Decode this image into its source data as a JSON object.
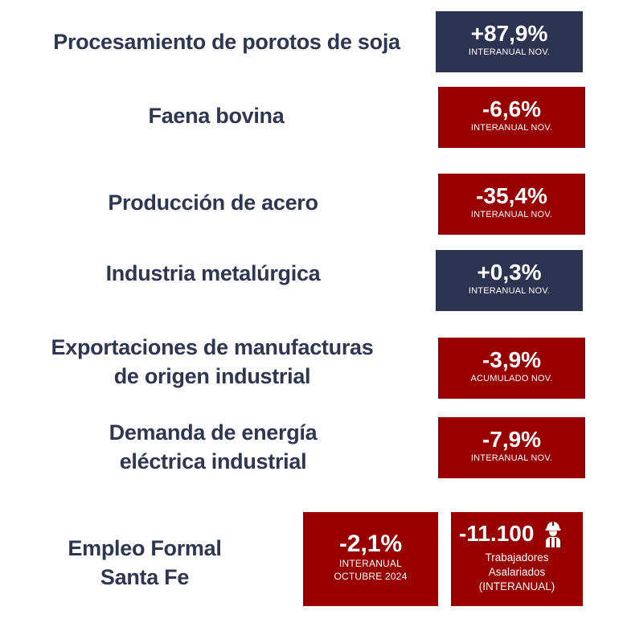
{
  "colors": {
    "label_text": "#2f3650",
    "positive_box": "#2d3452",
    "negative_box": "#990000",
    "box_text": "#ffffff"
  },
  "indicators": [
    {
      "label_lines": [
        "Procesamiento de porotos de soja"
      ],
      "value": "+87,9%",
      "period": "INTERANUAL NOV.",
      "trend": "positive"
    },
    {
      "label_lines": [
        "Faena bovina"
      ],
      "value": "-6,6%",
      "period": "INTERANUAL NOV.",
      "trend": "negative"
    },
    {
      "label_lines": [
        "Producción de acero"
      ],
      "value": "-35,4%",
      "period": "INTERANUAL NOV.",
      "trend": "negative"
    },
    {
      "label_lines": [
        "Industria metalúrgica"
      ],
      "value": "+0,3%",
      "period": "INTERANUAL NOV.",
      "trend": "positive"
    },
    {
      "label_lines": [
        "Exportaciones de manufacturas",
        "de origen industrial"
      ],
      "value": "-3,9%",
      "period": "ACUMULADO NOV.",
      "trend": "negative"
    },
    {
      "label_lines": [
        "Demanda de energía",
        "eléctrica industrial"
      ],
      "value": "-7,9%",
      "period": "INTERANUAL NOV.",
      "trend": "negative"
    }
  ],
  "employment": {
    "label_lines": [
      "Empleo Formal",
      "Santa Fe"
    ],
    "rate": {
      "value": "-2,1%",
      "period_lines": [
        "INTERANUAL",
        "OCTUBRE 2024"
      ],
      "trend": "negative"
    },
    "workers": {
      "value": "-11.100",
      "icon": "worker-icon",
      "desc_lines": [
        "Trabajadores",
        "Asalariados",
        "(INTERANUAL)"
      ],
      "trend": "negative"
    }
  }
}
